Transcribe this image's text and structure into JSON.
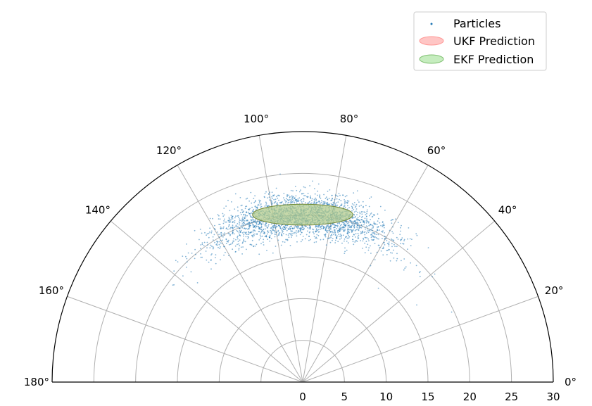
{
  "chart_data": {
    "type": "scatter",
    "projection": "polar-half",
    "theta_range_deg": [
      0,
      180
    ],
    "r_range": [
      0,
      30
    ],
    "r_ticks": [
      "0",
      "5",
      "10",
      "15",
      "20",
      "25",
      "30"
    ],
    "theta_ticks": [
      "0°",
      "20°",
      "40°",
      "60°",
      "80°",
      "100°",
      "120°",
      "140°",
      "160°",
      "180°"
    ],
    "grid": true,
    "legend": {
      "placement": "top-right",
      "items": [
        "Particles",
        "UKF Prediction",
        "EKF Prediction"
      ]
    },
    "colors": {
      "particles": "#1f77b4",
      "ukf": "#ff9896",
      "ekf": "#98df8a",
      "axis": "#000000",
      "grid": "#b0b0b0"
    },
    "series": [
      {
        "name": "Particles",
        "kind": "points",
        "count": 2600,
        "center_r": 20,
        "center_theta_deg": 90,
        "spread_r": 1.3,
        "spread_theta_deg": 16
      },
      {
        "name": "UKF Prediction",
        "kind": "ellipse",
        "x_range": [
          -6,
          6
        ],
        "y_range": [
          18.8,
          21.3
        ]
      },
      {
        "name": "EKF Prediction",
        "kind": "ellipse",
        "x_range": [
          -6,
          6
        ],
        "y_range": [
          18.8,
          21.3
        ]
      }
    ]
  }
}
